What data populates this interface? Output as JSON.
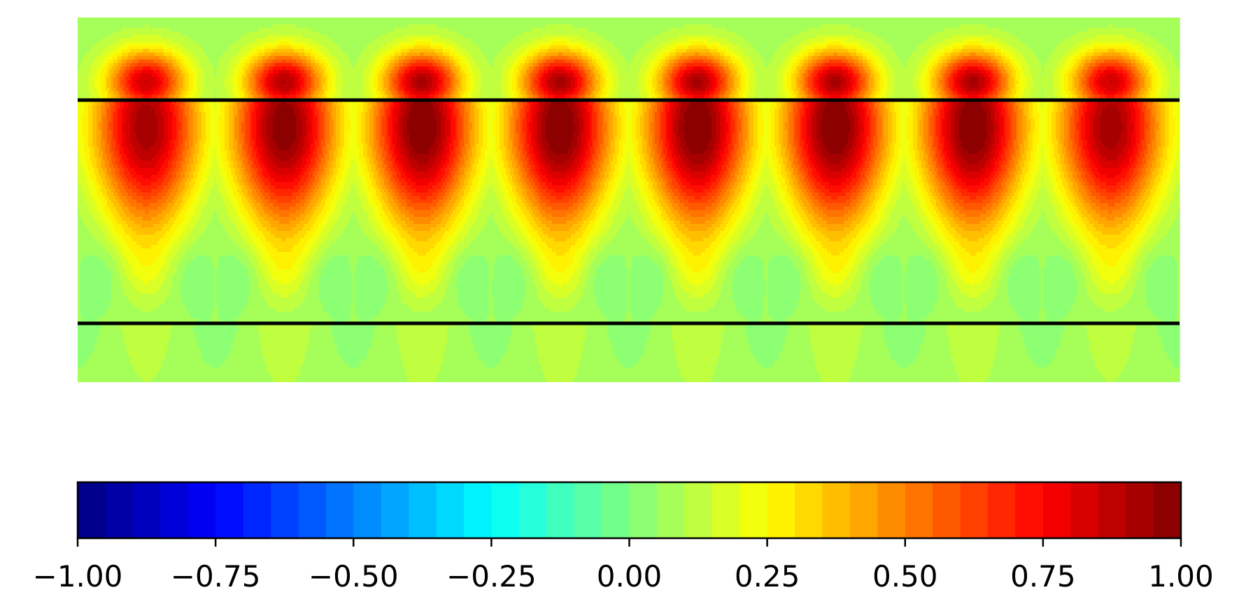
{
  "chart_data": {
    "type": "heatmap",
    "title": "",
    "xlabel": "",
    "ylabel": "",
    "colormap": "jet",
    "levels": 40,
    "vmin": -1.0,
    "vmax": 1.0,
    "axes_visible": false,
    "grid": false,
    "lobe_count": 8,
    "lobe_peak_values": [
      0.92,
      0.98,
      1.0,
      1.0,
      1.0,
      1.0,
      1.0,
      0.92
    ],
    "horizontal_lines": {
      "count": 2,
      "color": "#000000"
    },
    "colorbar": {
      "orientation": "horizontal",
      "placement": "bottom",
      "range": [
        -1.0,
        1.0
      ],
      "ticks": [
        -1.0,
        -0.75,
        -0.5,
        -0.25,
        0.0,
        0.25,
        0.5,
        0.75,
        1.0
      ],
      "tick_labels": [
        "−1.00",
        "−0.75",
        "−0.50",
        "−0.25",
        "0.00",
        "0.25",
        "0.50",
        "0.75",
        "1.00"
      ]
    }
  }
}
